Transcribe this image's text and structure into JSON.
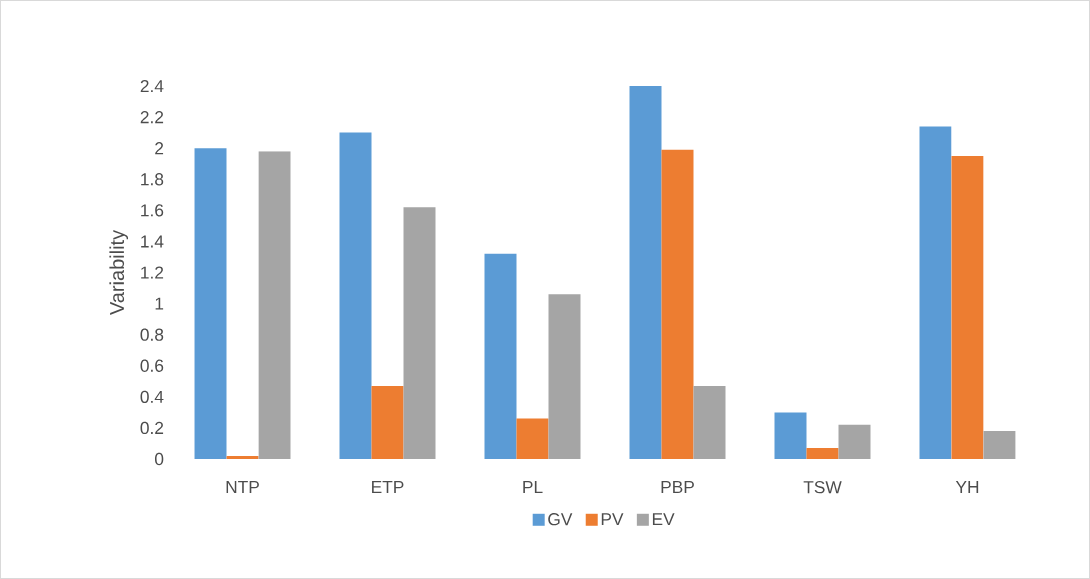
{
  "chart_data": {
    "type": "bar",
    "ylabel": "Variability",
    "categories": [
      "NTP",
      "ETP",
      "PL",
      "PBP",
      "TSW",
      "YH"
    ],
    "series": [
      {
        "name": "GV",
        "color": "#5b9bd5",
        "values": [
          2.0,
          2.1,
          1.32,
          2.4,
          0.3,
          2.14
        ]
      },
      {
        "name": "PV",
        "color": "#ed7d31",
        "values": [
          0.02,
          0.47,
          0.26,
          1.99,
          0.07,
          1.95
        ]
      },
      {
        "name": "EV",
        "color": "#a5a5a5",
        "values": [
          1.98,
          1.62,
          1.06,
          0.47,
          0.22,
          0.18
        ]
      }
    ],
    "ylim": [
      0,
      2.4
    ],
    "yticks": [
      0,
      0.2,
      0.4,
      0.6,
      0.8,
      1,
      1.2,
      1.4,
      1.6,
      1.8,
      2,
      2.2,
      2.4
    ],
    "grid": false,
    "legend": "bottom"
  }
}
